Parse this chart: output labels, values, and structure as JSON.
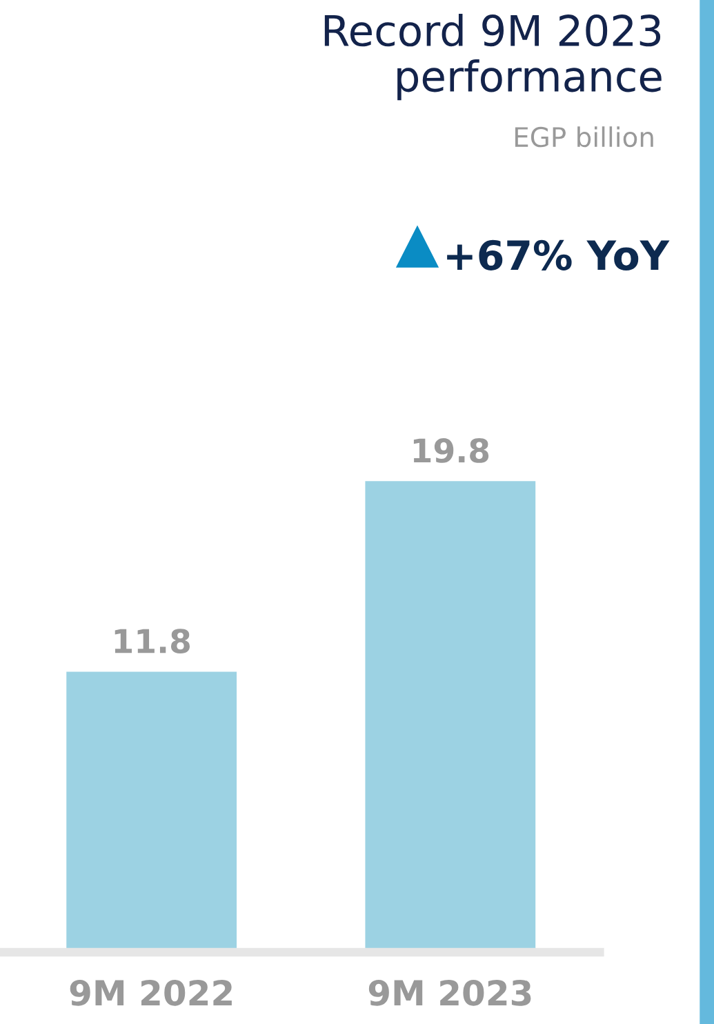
{
  "chart_data": {
    "type": "bar",
    "title": "Record 9M 2023\nperformance",
    "subtitle": "EGP billion",
    "categories": [
      "9M 2022",
      "9M 2023"
    ],
    "values": [
      11.8,
      19.8
    ],
    "color": "#9cd2e3",
    "data_labels": true,
    "grid": false,
    "legend": false,
    "annotations": [
      "+67% YoY"
    ]
  }
}
